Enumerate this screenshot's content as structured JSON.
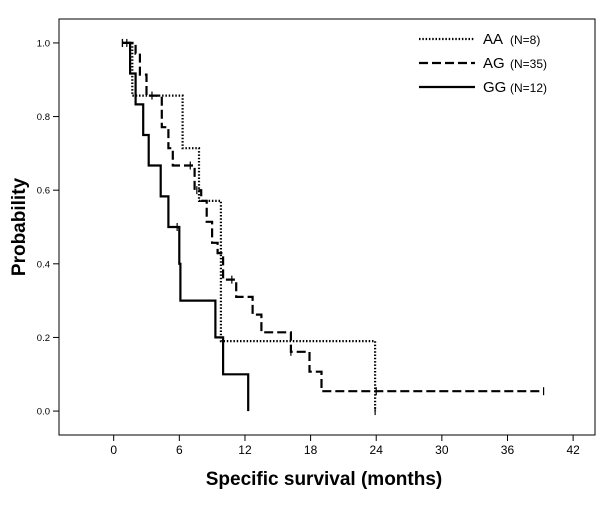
{
  "chart_data": {
    "type": "line",
    "subtype": "kaplan-meier step survival curves",
    "title": "",
    "xlabel": "Specific survival (months)",
    "ylabel": "Probability",
    "xlim": [
      -5,
      44
    ],
    "ylim": [
      -0.065,
      1.065
    ],
    "x_ticks": [
      0,
      6,
      12,
      18,
      24,
      30,
      36,
      42
    ],
    "x_tick_labels": [
      "0",
      "6",
      "12",
      "18",
      "24",
      "30",
      "36",
      "42"
    ],
    "y_ticks": [
      0.0,
      0.2,
      0.4,
      0.6,
      0.8,
      1.0
    ],
    "y_tick_labels": [
      "0.0",
      "0.2",
      "0.4",
      "0.6",
      "0.8",
      "1.0"
    ],
    "grid": false,
    "legend_position": "top-right",
    "series": [
      {
        "name": "AA",
        "n_label": "(N=8)",
        "line_style": "dotted",
        "color": "#000000",
        "points": [
          [
            0.8,
            1.0
          ],
          [
            1.7,
            1.0
          ],
          [
            1.7,
            0.857
          ],
          [
            6.3,
            0.857
          ],
          [
            6.3,
            0.714
          ],
          [
            7.8,
            0.714
          ],
          [
            7.8,
            0.571
          ],
          [
            9.8,
            0.571
          ],
          [
            9.8,
            0.19
          ],
          [
            23.9,
            0.19
          ],
          [
            23.9,
            0.0
          ]
        ],
        "censored": [
          [
            0.8,
            1.0
          ],
          [
            23.9,
            0.0
          ]
        ]
      },
      {
        "name": "AG",
        "n_label": "(N=35)",
        "line_style": "dashed",
        "color": "#000000",
        "points": [
          [
            1.0,
            1.0
          ],
          [
            2.0,
            1.0
          ],
          [
            2.0,
            0.971
          ],
          [
            2.4,
            0.971
          ],
          [
            2.4,
            0.914
          ],
          [
            3.0,
            0.914
          ],
          [
            3.0,
            0.857
          ],
          [
            4.4,
            0.857
          ],
          [
            4.4,
            0.771
          ],
          [
            5.0,
            0.771
          ],
          [
            5.0,
            0.714
          ],
          [
            5.4,
            0.714
          ],
          [
            5.4,
            0.667
          ],
          [
            7.4,
            0.667
          ],
          [
            7.4,
            0.6
          ],
          [
            8.0,
            0.6
          ],
          [
            8.0,
            0.571
          ],
          [
            8.5,
            0.571
          ],
          [
            8.5,
            0.514
          ],
          [
            9.0,
            0.514
          ],
          [
            9.0,
            0.457
          ],
          [
            9.5,
            0.457
          ],
          [
            9.5,
            0.429
          ],
          [
            10.0,
            0.429
          ],
          [
            10.0,
            0.357
          ],
          [
            11.2,
            0.357
          ],
          [
            11.2,
            0.31
          ],
          [
            12.7,
            0.31
          ],
          [
            12.7,
            0.262
          ],
          [
            13.5,
            0.262
          ],
          [
            13.5,
            0.214
          ],
          [
            16.2,
            0.214
          ],
          [
            16.2,
            0.161
          ],
          [
            17.9,
            0.161
          ],
          [
            17.9,
            0.107
          ],
          [
            19.0,
            0.107
          ],
          [
            19.0,
            0.054
          ],
          [
            39.3,
            0.054
          ]
        ],
        "censored": [
          [
            1.2,
            1.0
          ],
          [
            3.5,
            0.857
          ],
          [
            7.0,
            0.667
          ],
          [
            7.6,
            0.6
          ],
          [
            10.8,
            0.357
          ],
          [
            16.2,
            0.161
          ],
          [
            24.0,
            0.054
          ],
          [
            39.3,
            0.054
          ]
        ]
      },
      {
        "name": "GG",
        "n_label": "(N=12)",
        "line_style": "solid",
        "color": "#000000",
        "points": [
          [
            0.8,
            1.0
          ],
          [
            1.5,
            1.0
          ],
          [
            1.5,
            0.917
          ],
          [
            2.0,
            0.917
          ],
          [
            2.0,
            0.833
          ],
          [
            2.7,
            0.833
          ],
          [
            2.7,
            0.75
          ],
          [
            3.2,
            0.75
          ],
          [
            3.2,
            0.667
          ],
          [
            4.3,
            0.667
          ],
          [
            4.3,
            0.583
          ],
          [
            5.0,
            0.583
          ],
          [
            5.0,
            0.5
          ],
          [
            6.0,
            0.5
          ],
          [
            6.0,
            0.4
          ],
          [
            6.1,
            0.4
          ],
          [
            6.1,
            0.3
          ],
          [
            9.3,
            0.3
          ],
          [
            9.3,
            0.2
          ],
          [
            10.0,
            0.2
          ],
          [
            10.0,
            0.1
          ],
          [
            12.3,
            0.1
          ],
          [
            12.3,
            0.0
          ]
        ],
        "censored": [
          [
            0.8,
            1.0
          ],
          [
            5.8,
            0.5
          ]
        ]
      }
    ]
  }
}
